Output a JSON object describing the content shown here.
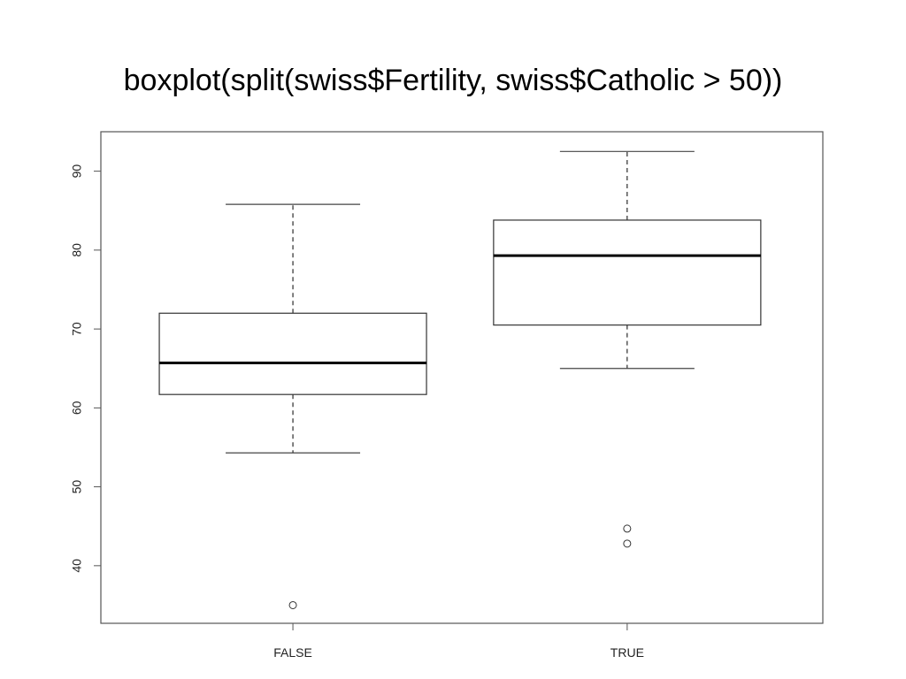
{
  "slide": {
    "title": "boxplot(split(swiss$Fertility, swiss$Catholic > 50))"
  },
  "chart_data": {
    "type": "boxplot",
    "title": "",
    "xlabel": "",
    "ylabel": "",
    "categories": [
      "FALSE",
      "TRUE"
    ],
    "boxes": [
      {
        "name": "FALSE",
        "lower_whisker": 54.3,
        "q1": 61.7,
        "median": 65.7,
        "q3": 72.0,
        "upper_whisker": 85.8,
        "outliers": [
          35.0
        ]
      },
      {
        "name": "TRUE",
        "lower_whisker": 65.0,
        "q1": 70.5,
        "median": 79.3,
        "q3": 83.8,
        "upper_whisker": 92.5,
        "outliers": [
          44.7,
          42.8
        ]
      }
    ],
    "yticks": [
      40,
      50,
      60,
      70,
      80,
      90
    ],
    "ylim": [
      32.7,
      95.0
    ],
    "grid": false,
    "colors": {
      "box_fill": "#ffffff",
      "stroke": "#000000",
      "axis": "#555555"
    }
  }
}
